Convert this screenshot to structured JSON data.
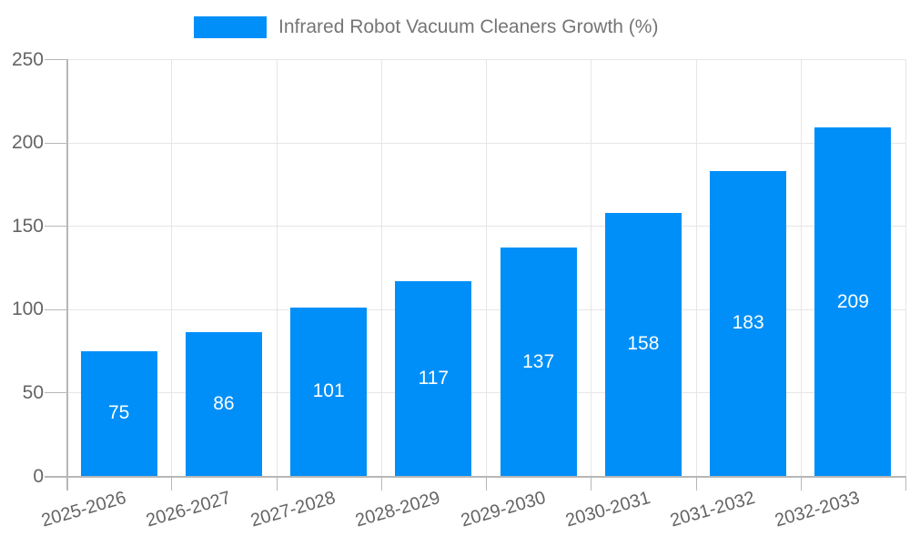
{
  "chart_data": {
    "type": "bar",
    "title": "Infrared Robot Vacuum Cleaners Growth (%)",
    "categories": [
      "2025-2026",
      "2026-2027",
      "2027-2028",
      "2028-2029",
      "2029-2030",
      "2030-2031",
      "2031-2032",
      "2032-2033"
    ],
    "values": [
      75,
      86,
      101,
      117,
      137,
      158,
      183,
      209
    ],
    "xlabel": "",
    "ylabel": "",
    "ylim": [
      0,
      250
    ],
    "yticks": [
      0,
      50,
      100,
      150,
      200,
      250
    ],
    "grid": true,
    "legend_position": "top-center",
    "value_labels": "inside-center",
    "colors": {
      "bar": "#008ff8",
      "value_label": "#ffffff",
      "gridline": "#e6e6e6",
      "axis": "#b7b7b7",
      "tick_label": "#646464",
      "legend_text": "#757575",
      "background": "#ffffff"
    }
  }
}
